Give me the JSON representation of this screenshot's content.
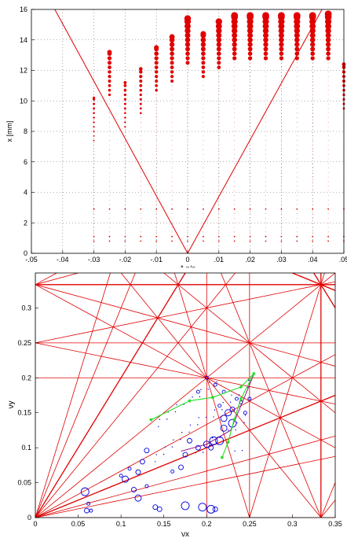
{
  "colors": {
    "grid": "#666666",
    "red": "#e00000",
    "blue": "#0000e0",
    "green": "#22dd22",
    "purple": "#800080"
  },
  "chart_data": [
    {
      "type": "scatter",
      "xlabel": "Δ p/p",
      "ylabel": "x [mm]",
      "xlim": [
        -0.05,
        0.05
      ],
      "ylim": [
        0,
        16
      ],
      "xticks": [
        -0.05,
        -0.04,
        -0.03,
        -0.02,
        -0.01,
        0,
        0.01,
        0.02,
        0.03,
        0.04,
        0.05
      ],
      "yticks": [
        0,
        2,
        4,
        6,
        8,
        10,
        12,
        14,
        16
      ],
      "grid": true,
      "columns": [
        {
          "dp": -0.03,
          "top": 10.2
        },
        {
          "dp": -0.025,
          "top": 13.2
        },
        {
          "dp": -0.02,
          "top": 11.2
        },
        {
          "dp": -0.015,
          "top": 12.1
        },
        {
          "dp": -0.01,
          "top": 13.5
        },
        {
          "dp": -0.005,
          "top": 14.2
        },
        {
          "dp": 0.0,
          "top": 15.4
        },
        {
          "dp": 0.005,
          "top": 14.4
        },
        {
          "dp": 0.01,
          "top": 15.2
        },
        {
          "dp": 0.015,
          "top": 15.6
        },
        {
          "dp": 0.02,
          "top": 15.6
        },
        {
          "dp": 0.025,
          "top": 15.6
        },
        {
          "dp": 0.03,
          "top": 15.6
        },
        {
          "dp": 0.035,
          "top": 15.6
        },
        {
          "dp": 0.04,
          "top": 15.6
        },
        {
          "dp": 0.045,
          "top": 15.7
        },
        {
          "dp": 0.05,
          "top": 12.4
        }
      ],
      "boundary_lines": [
        {
          "from": [
            -0.0425,
            16
          ],
          "to": [
            0,
            0
          ]
        },
        {
          "from": [
            0,
            0
          ],
          "to": [
            0.043,
            16
          ]
        }
      ]
    },
    {
      "type": "scatter",
      "xlabel": "νx",
      "ylabel": "νy",
      "xlim": [
        0,
        0.35
      ],
      "ylim": [
        0,
        0.35
      ],
      "xticks": [
        0,
        0.05,
        0.1,
        0.15,
        0.2,
        0.25,
        0.3,
        0.35
      ],
      "yticks": [
        0,
        0.05,
        0.1,
        0.15,
        0.2,
        0.25,
        0.3
      ],
      "tick_labels_x": [
        "0",
        "0.05",
        "0.1",
        "0.15",
        "0.2",
        "0.25",
        "0.3",
        "0.35"
      ],
      "tick_labels_y": [
        "0",
        "0.05",
        "0.1",
        "0.15",
        "0.2",
        "0.25",
        "0.3"
      ],
      "resonance_lines": "red",
      "tune_points": [
        {
          "x": 0.2,
          "y": 0.2,
          "r": 2
        },
        {
          "x": 0.21,
          "y": 0.19,
          "r": 2
        },
        {
          "x": 0.22,
          "y": 0.18,
          "r": 2
        },
        {
          "x": 0.235,
          "y": 0.17,
          "r": 2
        },
        {
          "x": 0.24,
          "y": 0.165,
          "r": 2
        },
        {
          "x": 0.23,
          "y": 0.155,
          "r": 3
        },
        {
          "x": 0.225,
          "y": 0.15,
          "r": 4
        },
        {
          "x": 0.22,
          "y": 0.142,
          "r": 4
        },
        {
          "x": 0.23,
          "y": 0.135,
          "r": 5
        },
        {
          "x": 0.22,
          "y": 0.128,
          "r": 4
        },
        {
          "x": 0.215,
          "y": 0.11,
          "r": 5
        },
        {
          "x": 0.208,
          "y": 0.11,
          "r": 5
        },
        {
          "x": 0.2,
          "y": 0.105,
          "r": 4
        },
        {
          "x": 0.205,
          "y": 0.1,
          "r": 3
        },
        {
          "x": 0.19,
          "y": 0.1,
          "r": 3
        },
        {
          "x": 0.18,
          "y": 0.11,
          "r": 3
        },
        {
          "x": 0.175,
          "y": 0.09,
          "r": 3
        },
        {
          "x": 0.17,
          "y": 0.072,
          "r": 3
        },
        {
          "x": 0.16,
          "y": 0.066,
          "r": 2
        },
        {
          "x": 0.13,
          "y": 0.096,
          "r": 3
        },
        {
          "x": 0.125,
          "y": 0.08,
          "r": 3
        },
        {
          "x": 0.12,
          "y": 0.065,
          "r": 3
        },
        {
          "x": 0.11,
          "y": 0.07,
          "r": 2
        },
        {
          "x": 0.105,
          "y": 0.055,
          "r": 4
        },
        {
          "x": 0.1,
          "y": 0.06,
          "r": 2
        },
        {
          "x": 0.115,
          "y": 0.04,
          "r": 3
        },
        {
          "x": 0.13,
          "y": 0.045,
          "r": 2
        },
        {
          "x": 0.12,
          "y": 0.028,
          "r": 4
        },
        {
          "x": 0.14,
          "y": 0.015,
          "r": 3
        },
        {
          "x": 0.145,
          "y": 0.012,
          "r": 3
        },
        {
          "x": 0.175,
          "y": 0.017,
          "r": 5
        },
        {
          "x": 0.195,
          "y": 0.015,
          "r": 5
        },
        {
          "x": 0.205,
          "y": 0.012,
          "r": 5
        },
        {
          "x": 0.21,
          "y": 0.012,
          "r": 3
        },
        {
          "x": 0.06,
          "y": 0.01,
          "r": 3
        },
        {
          "x": 0.065,
          "y": 0.01,
          "r": 2
        },
        {
          "x": 0.062,
          "y": 0.02,
          "r": 2
        },
        {
          "x": 0.058,
          "y": 0.037,
          "r": 5
        },
        {
          "x": 0.19,
          "y": 0.18,
          "r": 2
        },
        {
          "x": 0.215,
          "y": 0.16,
          "r": 2
        },
        {
          "x": 0.245,
          "y": 0.15,
          "r": 2
        },
        {
          "x": 0.25,
          "y": 0.17,
          "r": 2
        }
      ],
      "green_path": [
        [
          0.135,
          0.14
        ],
        [
          0.18,
          0.167
        ],
        [
          0.207,
          0.172
        ],
        [
          0.24,
          0.187
        ],
        [
          0.255,
          0.206
        ],
        [
          0.24,
          0.17
        ],
        [
          0.232,
          0.14
        ],
        [
          0.225,
          0.108
        ],
        [
          0.218,
          0.086
        ]
      ],
      "purple_path": [
        [
          0.17,
          0.095
        ],
        [
          0.2,
          0.105
        ],
        [
          0.228,
          0.125
        ],
        [
          0.245,
          0.175
        ],
        [
          0.255,
          0.205
        ]
      ]
    }
  ]
}
